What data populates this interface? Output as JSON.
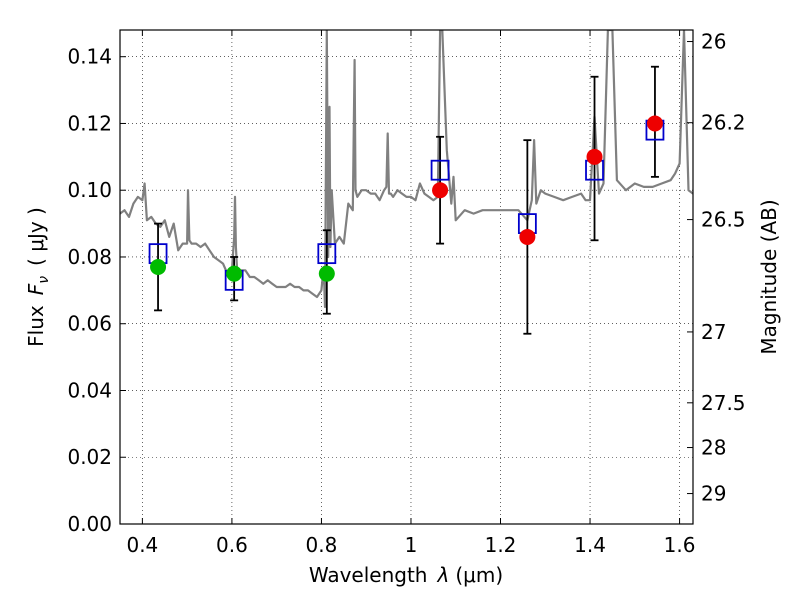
{
  "chart_data": {
    "type": "scatter",
    "xlabel_prefix": "Wavelength",
    "xlabel_symbol": "λ",
    "xlabel_unit": "(μm)",
    "ylabel_prefix": "Flux",
    "ylabel_symbol": "F",
    "ylabel_subscript": "ν",
    "ylabel_unit": "( μJy )",
    "y2label": "Magnitude (AB)",
    "xlim": [
      0.35,
      1.63
    ],
    "ylim": [
      0.0,
      0.148
    ],
    "grid": true,
    "x_ticks": [
      {
        "value": 0.4,
        "label": "0.4"
      },
      {
        "value": 0.6,
        "label": "0.6"
      },
      {
        "value": 0.8,
        "label": "0.8"
      },
      {
        "value": 1.0,
        "label": "1"
      },
      {
        "value": 1.2,
        "label": "1.2"
      },
      {
        "value": 1.4,
        "label": "1.4"
      },
      {
        "value": 1.6,
        "label": "1.6"
      }
    ],
    "y_ticks": [
      {
        "value": 0.0,
        "label": "0.00"
      },
      {
        "value": 0.02,
        "label": "0.02"
      },
      {
        "value": 0.04,
        "label": "0.04"
      },
      {
        "value": 0.06,
        "label": "0.06"
      },
      {
        "value": 0.08,
        "label": "0.08"
      },
      {
        "value": 0.1,
        "label": "0.10"
      },
      {
        "value": 0.12,
        "label": "0.12"
      },
      {
        "value": 0.14,
        "label": "0.14"
      }
    ],
    "y2_ticks": [
      {
        "value": 26.0,
        "label": "26"
      },
      {
        "value": 26.2,
        "label": "26.2"
      },
      {
        "value": 26.5,
        "label": "26.5"
      },
      {
        "value": 27.0,
        "label": "27"
      },
      {
        "value": 27.5,
        "label": "27.5"
      },
      {
        "value": 28.0,
        "label": "28"
      },
      {
        "value": 29.0,
        "label": "29"
      }
    ],
    "model_spectrum": {
      "color": "#808080",
      "x": [
        0.35,
        0.36,
        0.37,
        0.38,
        0.39,
        0.4,
        0.405,
        0.41,
        0.42,
        0.43,
        0.44,
        0.45,
        0.46,
        0.47,
        0.48,
        0.49,
        0.5,
        0.502,
        0.505,
        0.51,
        0.52,
        0.53,
        0.54,
        0.55,
        0.56,
        0.57,
        0.58,
        0.59,
        0.6,
        0.605,
        0.607,
        0.609,
        0.612,
        0.62,
        0.63,
        0.64,
        0.65,
        0.66,
        0.67,
        0.68,
        0.69,
        0.7,
        0.71,
        0.72,
        0.73,
        0.74,
        0.75,
        0.76,
        0.77,
        0.78,
        0.79,
        0.8,
        0.805,
        0.808,
        0.812,
        0.815,
        0.818,
        0.82,
        0.823,
        0.83,
        0.84,
        0.85,
        0.86,
        0.87,
        0.874,
        0.876,
        0.88,
        0.89,
        0.9,
        0.91,
        0.92,
        0.93,
        0.94,
        0.945,
        0.948,
        0.951,
        0.955,
        0.96,
        0.97,
        0.98,
        0.99,
        1.0,
        1.01,
        1.02,
        1.03,
        1.04,
        1.05,
        1.06,
        1.065,
        1.07,
        1.08,
        1.09,
        1.095,
        1.1,
        1.12,
        1.14,
        1.16,
        1.18,
        1.2,
        1.22,
        1.24,
        1.26,
        1.27,
        1.275,
        1.28,
        1.29,
        1.3,
        1.32,
        1.34,
        1.36,
        1.38,
        1.39,
        1.4,
        1.41,
        1.42,
        1.43,
        1.44,
        1.45,
        1.46,
        1.48,
        1.5,
        1.52,
        1.54,
        1.56,
        1.58,
        1.59,
        1.6,
        1.61,
        1.62,
        1.63
      ],
      "y": [
        0.093,
        0.094,
        0.092,
        0.096,
        0.098,
        0.097,
        0.102,
        0.091,
        0.092,
        0.09,
        0.089,
        0.091,
        0.086,
        0.09,
        0.082,
        0.084,
        0.084,
        0.1,
        0.085,
        0.084,
        0.084,
        0.083,
        0.084,
        0.082,
        0.08,
        0.079,
        0.078,
        0.075,
        0.076,
        0.086,
        0.098,
        0.083,
        0.075,
        0.076,
        0.076,
        0.074,
        0.074,
        0.073,
        0.072,
        0.073,
        0.072,
        0.071,
        0.071,
        0.071,
        0.072,
        0.071,
        0.071,
        0.07,
        0.07,
        0.069,
        0.068,
        0.07,
        0.077,
        0.065,
        0.148,
        0.08,
        0.125,
        0.083,
        0.1,
        0.084,
        0.086,
        0.084,
        0.096,
        0.094,
        0.139,
        0.1,
        0.098,
        0.1,
        0.1,
        0.099,
        0.099,
        0.097,
        0.1,
        0.101,
        0.117,
        0.099,
        0.099,
        0.098,
        0.1,
        0.099,
        0.098,
        0.098,
        0.097,
        0.102,
        0.099,
        0.098,
        0.097,
        0.098,
        0.148,
        0.148,
        0.112,
        0.096,
        0.104,
        0.091,
        0.094,
        0.093,
        0.094,
        0.094,
        0.094,
        0.094,
        0.094,
        0.091,
        0.097,
        0.115,
        0.096,
        0.1,
        0.099,
        0.098,
        0.097,
        0.098,
        0.099,
        0.097,
        0.097,
        0.122,
        0.099,
        0.102,
        0.148,
        0.148,
        0.103,
        0.1,
        0.102,
        0.101,
        0.101,
        0.102,
        0.103,
        0.105,
        0.108,
        0.148,
        0.1,
        0.099
      ],
      "note_clipped_above": 0.148
    },
    "model_points": {
      "marker": "open-square",
      "color": "#0000cc",
      "x": [
        0.435,
        0.605,
        0.812,
        1.065,
        1.26,
        1.41,
        1.545
      ],
      "y": [
        0.081,
        0.073,
        0.081,
        0.106,
        0.09,
        0.106,
        0.118
      ]
    },
    "observed_points": {
      "marker": "filled-circle",
      "x": [
        0.435,
        0.605,
        0.812,
        1.065,
        1.26,
        1.41,
        1.545
      ],
      "y": [
        0.077,
        0.075,
        0.075,
        0.1,
        0.086,
        0.11,
        0.12
      ],
      "yerr_low": [
        0.064,
        0.067,
        0.063,
        0.084,
        0.057,
        0.085,
        0.104
      ],
      "yerr_high": [
        0.09,
        0.08,
        0.088,
        0.116,
        0.115,
        0.134,
        0.137
      ],
      "colors": [
        "#00bb00",
        "#00bb00",
        "#00bb00",
        "#ee0000",
        "#ee0000",
        "#ee0000",
        "#ee0000"
      ]
    }
  }
}
